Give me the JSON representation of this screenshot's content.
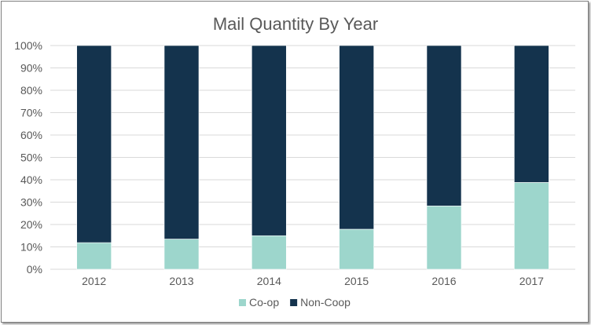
{
  "chart_data": {
    "type": "bar",
    "stacked": "percent",
    "title": "Mail Quantity By Year",
    "xlabel": "",
    "ylabel": "",
    "categories": [
      "2012",
      "2013",
      "2014",
      "2015",
      "2016",
      "2017"
    ],
    "series": [
      {
        "name": "Co-op",
        "color": "#9dd6cc",
        "values": [
          11.9,
          13.5,
          15.0,
          17.9,
          28.3,
          38.8
        ]
      },
      {
        "name": "Non-Coop",
        "color": "#14334d",
        "values": [
          88.1,
          86.5,
          85.0,
          82.1,
          71.7,
          61.2
        ]
      }
    ],
    "ylim": [
      0,
      100
    ],
    "yticks": [
      "0%",
      "10%",
      "20%",
      "30%",
      "40%",
      "50%",
      "60%",
      "70%",
      "80%",
      "90%",
      "100%"
    ],
    "grid": true,
    "legend": "bottom"
  }
}
